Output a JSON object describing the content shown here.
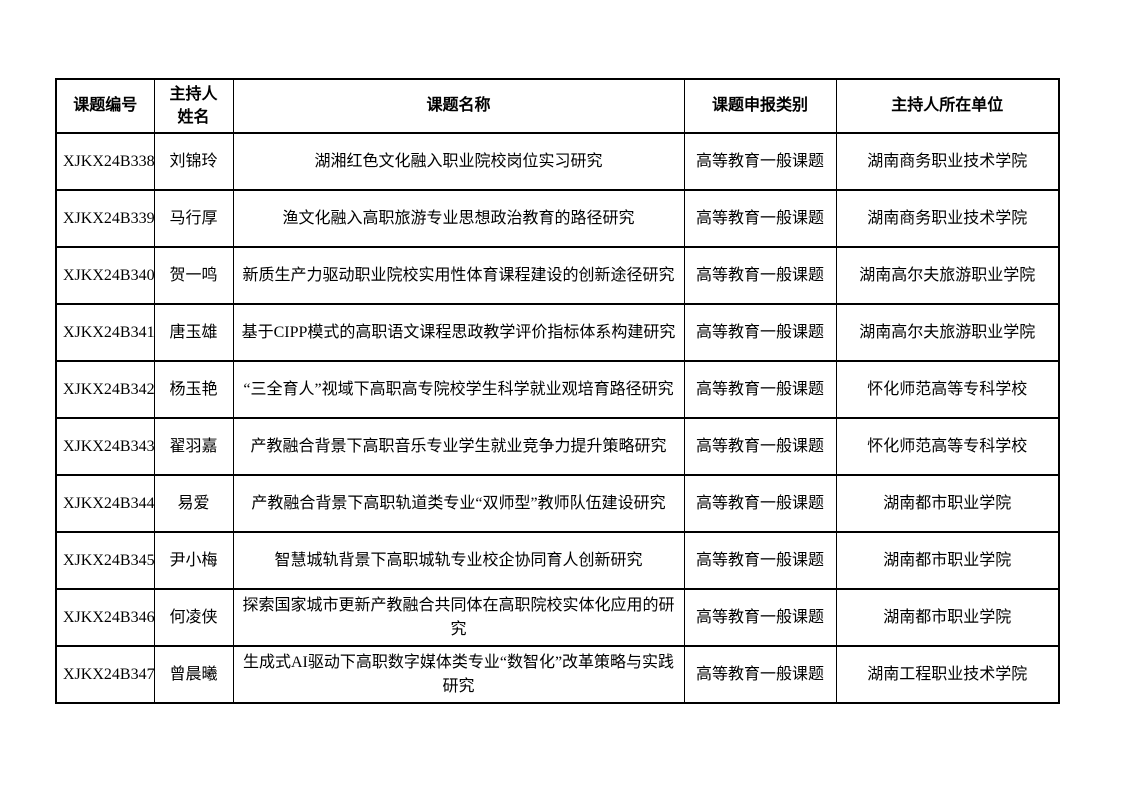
{
  "table": {
    "columns": {
      "code": {
        "label": "课题编号"
      },
      "leader": {
        "label": "主持人\n姓名"
      },
      "title": {
        "label": "课题名称"
      },
      "category": {
        "label": "课题申报类别"
      },
      "org": {
        "label": "主持人所在单位"
      }
    },
    "rows": [
      {
        "code": "XJKX24B338",
        "leader": "刘锦玲",
        "title": "湖湘红色文化融入职业院校岗位实习研究",
        "category": "高等教育一般课题",
        "org": "湖南商务职业技术学院"
      },
      {
        "code": "XJKX24B339",
        "leader": "马行厚",
        "title": "渔文化融入高职旅游专业思想政治教育的路径研究",
        "category": "高等教育一般课题",
        "org": "湖南商务职业技术学院"
      },
      {
        "code": "XJKX24B340",
        "leader": "贺一鸣",
        "title": "新质生产力驱动职业院校实用性体育课程建设的创新途径研究",
        "category": "高等教育一般课题",
        "org": "湖南高尔夫旅游职业学院"
      },
      {
        "code": "XJKX24B341",
        "leader": "唐玉雄",
        "title": "基于CIPP模式的高职语文课程思政教学评价指标体系构建研究",
        "category": "高等教育一般课题",
        "org": "湖南高尔夫旅游职业学院"
      },
      {
        "code": "XJKX24B342",
        "leader": "杨玉艳",
        "title": "“三全育人”视域下高职高专院校学生科学就业观培育路径研究",
        "category": "高等教育一般课题",
        "org": "怀化师范高等专科学校"
      },
      {
        "code": "XJKX24B343",
        "leader": "翟羽嘉",
        "title": "产教融合背景下高职音乐专业学生就业竞争力提升策略研究",
        "category": "高等教育一般课题",
        "org": "怀化师范高等专科学校"
      },
      {
        "code": "XJKX24B344",
        "leader": "易爱",
        "title": "产教融合背景下高职轨道类专业“双师型”教师队伍建设研究",
        "category": "高等教育一般课题",
        "org": "湖南都市职业学院"
      },
      {
        "code": "XJKX24B345",
        "leader": "尹小梅",
        "title": "智慧城轨背景下高职城轨专业校企协同育人创新研究",
        "category": "高等教育一般课题",
        "org": "湖南都市职业学院"
      },
      {
        "code": "XJKX24B346",
        "leader": "何凌侠",
        "title": "探索国家城市更新产教融合共同体在高职院校实体化应用的研究",
        "category": "高等教育一般课题",
        "org": "湖南都市职业学院"
      },
      {
        "code": "XJKX24B347",
        "leader": "曾晨曦",
        "title": "生成式AI驱动下高职数字媒体类专业“数智化”改革策略与实践研究",
        "category": "高等教育一般课题",
        "org": "湖南工程职业技术学院"
      }
    ]
  }
}
